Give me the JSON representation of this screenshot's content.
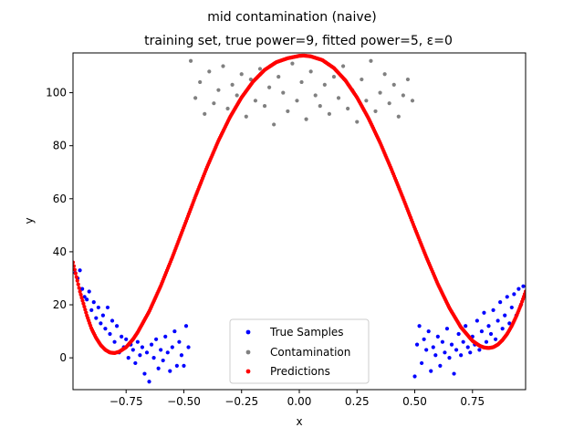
{
  "chart_data": {
    "type": "scatter",
    "title": "mid contamination (naive)",
    "subtitle": "training set, true power=9, fitted power=5, ε=0",
    "xlabel": "x",
    "ylabel": "y",
    "xlim": [
      -0.98,
      0.98
    ],
    "ylim": [
      -12,
      115
    ],
    "xticks": [
      -0.75,
      -0.5,
      -0.25,
      0.0,
      0.25,
      0.5,
      0.75
    ],
    "xtick_labels": [
      "−0.75",
      "−0.50",
      "−0.25",
      "0.00",
      "0.25",
      "0.50",
      "0.75"
    ],
    "yticks": [
      0,
      20,
      40,
      60,
      80,
      100
    ],
    "ytick_labels": [
      "0",
      "20",
      "40",
      "60",
      "80",
      "100"
    ],
    "grid": false,
    "legend_position": "lower-center",
    "series": [
      {
        "name": "True Samples",
        "color": "#0000ff",
        "x_range": [
          [
            -0.98,
            -0.48
          ],
          [
            0.5,
            0.98
          ]
        ],
        "points": [
          [
            -0.97,
            32
          ],
          [
            -0.96,
            30
          ],
          [
            -0.95,
            33
          ],
          [
            -0.94,
            26
          ],
          [
            -0.93,
            23
          ],
          [
            -0.92,
            22
          ],
          [
            -0.91,
            25
          ],
          [
            -0.9,
            18
          ],
          [
            -0.89,
            21
          ],
          [
            -0.88,
            15
          ],
          [
            -0.87,
            19
          ],
          [
            -0.86,
            13
          ],
          [
            -0.85,
            16
          ],
          [
            -0.84,
            11
          ],
          [
            -0.83,
            19
          ],
          [
            -0.82,
            9
          ],
          [
            -0.81,
            14
          ],
          [
            -0.8,
            6
          ],
          [
            -0.79,
            12
          ],
          [
            -0.78,
            2
          ],
          [
            -0.77,
            8
          ],
          [
            -0.76,
            4
          ],
          [
            -0.75,
            7
          ],
          [
            -0.74,
            0
          ],
          [
            -0.73,
            5
          ],
          [
            -0.72,
            3
          ],
          [
            -0.71,
            -2
          ],
          [
            -0.7,
            6
          ],
          [
            -0.69,
            1
          ],
          [
            -0.68,
            4
          ],
          [
            -0.67,
            -6
          ],
          [
            -0.66,
            2
          ],
          [
            -0.65,
            -9
          ],
          [
            -0.64,
            5
          ],
          [
            -0.63,
            0
          ],
          [
            -0.62,
            7
          ],
          [
            -0.61,
            -4
          ],
          [
            -0.6,
            3
          ],
          [
            -0.59,
            -1
          ],
          [
            -0.58,
            8
          ],
          [
            -0.57,
            2
          ],
          [
            -0.56,
            -5
          ],
          [
            -0.55,
            4
          ],
          [
            -0.54,
            10
          ],
          [
            -0.53,
            -3
          ],
          [
            -0.52,
            6
          ],
          [
            -0.51,
            1
          ],
          [
            -0.5,
            -3
          ],
          [
            -0.49,
            12
          ],
          [
            -0.48,
            4
          ],
          [
            0.5,
            -7
          ],
          [
            0.51,
            5
          ],
          [
            0.52,
            12
          ],
          [
            0.53,
            -2
          ],
          [
            0.54,
            7
          ],
          [
            0.55,
            3
          ],
          [
            0.56,
            10
          ],
          [
            0.57,
            -5
          ],
          [
            0.58,
            4
          ],
          [
            0.59,
            1
          ],
          [
            0.6,
            8
          ],
          [
            0.61,
            -3
          ],
          [
            0.62,
            6
          ],
          [
            0.63,
            2
          ],
          [
            0.64,
            11
          ],
          [
            0.65,
            0
          ],
          [
            0.66,
            5
          ],
          [
            0.67,
            -6
          ],
          [
            0.68,
            3
          ],
          [
            0.69,
            9
          ],
          [
            0.7,
            1
          ],
          [
            0.71,
            6
          ],
          [
            0.72,
            12
          ],
          [
            0.73,
            4
          ],
          [
            0.74,
            2
          ],
          [
            0.75,
            8
          ],
          [
            0.76,
            5
          ],
          [
            0.77,
            14
          ],
          [
            0.78,
            3
          ],
          [
            0.79,
            10
          ],
          [
            0.8,
            17
          ],
          [
            0.81,
            6
          ],
          [
            0.82,
            12
          ],
          [
            0.83,
            9
          ],
          [
            0.84,
            18
          ],
          [
            0.85,
            7
          ],
          [
            0.86,
            14
          ],
          [
            0.87,
            21
          ],
          [
            0.88,
            11
          ],
          [
            0.89,
            16
          ],
          [
            0.9,
            23
          ],
          [
            0.91,
            13
          ],
          [
            0.92,
            19
          ],
          [
            0.93,
            24
          ],
          [
            0.94,
            16
          ],
          [
            0.95,
            26
          ],
          [
            0.96,
            20
          ],
          [
            0.97,
            27
          ]
        ]
      },
      {
        "name": "Contamination",
        "color": "#808080",
        "x_range": [
          -0.48,
          0.5
        ],
        "y_range": [
          86,
          114
        ],
        "points": [
          [
            -0.47,
            112
          ],
          [
            -0.45,
            98
          ],
          [
            -0.43,
            104
          ],
          [
            -0.41,
            92
          ],
          [
            -0.39,
            108
          ],
          [
            -0.37,
            96
          ],
          [
            -0.35,
            101
          ],
          [
            -0.33,
            110
          ],
          [
            -0.31,
            94
          ],
          [
            -0.29,
            103
          ],
          [
            -0.27,
            99
          ],
          [
            -0.25,
            107
          ],
          [
            -0.23,
            91
          ],
          [
            -0.21,
            105
          ],
          [
            -0.19,
            97
          ],
          [
            -0.17,
            109
          ],
          [
            -0.15,
            95
          ],
          [
            -0.13,
            102
          ],
          [
            -0.11,
            88
          ],
          [
            -0.09,
            106
          ],
          [
            -0.07,
            100
          ],
          [
            -0.05,
            93
          ],
          [
            -0.03,
            111
          ],
          [
            -0.01,
            97
          ],
          [
            0.01,
            104
          ],
          [
            0.03,
            90
          ],
          [
            0.05,
            108
          ],
          [
            0.07,
            99
          ],
          [
            0.09,
            95
          ],
          [
            0.11,
            103
          ],
          [
            0.13,
            92
          ],
          [
            0.15,
            106
          ],
          [
            0.17,
            98
          ],
          [
            0.19,
            110
          ],
          [
            0.21,
            94
          ],
          [
            0.23,
            101
          ],
          [
            0.25,
            89
          ],
          [
            0.27,
            105
          ],
          [
            0.29,
            97
          ],
          [
            0.31,
            112
          ],
          [
            0.33,
            93
          ],
          [
            0.35,
            100
          ],
          [
            0.37,
            107
          ],
          [
            0.39,
            96
          ],
          [
            0.41,
            103
          ],
          [
            0.43,
            91
          ],
          [
            0.45,
            99
          ],
          [
            0.47,
            105
          ],
          [
            0.49,
            97
          ]
        ]
      },
      {
        "name": "Predictions",
        "color": "#ff0000",
        "curve": [
          [
            -0.98,
            36
          ],
          [
            -0.95,
            25
          ],
          [
            -0.92,
            16
          ],
          [
            -0.9,
            11
          ],
          [
            -0.88,
            7.5
          ],
          [
            -0.86,
            4.8
          ],
          [
            -0.84,
            3.0
          ],
          [
            -0.82,
            2.0
          ],
          [
            -0.8,
            1.8
          ],
          [
            -0.78,
            2.3
          ],
          [
            -0.75,
            4.0
          ],
          [
            -0.72,
            7.0
          ],
          [
            -0.7,
            9.6
          ],
          [
            -0.65,
            17.5
          ],
          [
            -0.6,
            27.1
          ],
          [
            -0.55,
            37.9
          ],
          [
            -0.5,
            49.3
          ],
          [
            -0.45,
            60.8
          ],
          [
            -0.4,
            71.8
          ],
          [
            -0.35,
            81.9
          ],
          [
            -0.3,
            90.8
          ],
          [
            -0.25,
            98.2
          ],
          [
            -0.2,
            104.2
          ],
          [
            -0.15,
            108.6
          ],
          [
            -0.1,
            111.5
          ],
          [
            -0.05,
            113.0
          ],
          [
            0.0,
            113.9
          ],
          [
            0.02,
            114.0
          ],
          [
            0.05,
            113.7
          ],
          [
            0.1,
            112.3
          ],
          [
            0.15,
            109.3
          ],
          [
            0.2,
            104.6
          ],
          [
            0.25,
            98.2
          ],
          [
            0.3,
            90.3
          ],
          [
            0.35,
            81.1
          ],
          [
            0.4,
            70.9
          ],
          [
            0.45,
            60.1
          ],
          [
            0.5,
            48.9
          ],
          [
            0.55,
            38.0
          ],
          [
            0.6,
            27.8
          ],
          [
            0.65,
            18.8
          ],
          [
            0.7,
            11.5
          ],
          [
            0.75,
            6.4
          ],
          [
            0.78,
            4.6
          ],
          [
            0.8,
            3.9
          ],
          [
            0.82,
            3.7
          ],
          [
            0.84,
            4.0
          ],
          [
            0.86,
            5.0
          ],
          [
            0.88,
            6.7
          ],
          [
            0.9,
            9.0
          ],
          [
            0.92,
            12.0
          ],
          [
            0.94,
            15.7
          ],
          [
            0.96,
            20.0
          ],
          [
            0.98,
            25.0
          ]
        ]
      }
    ]
  }
}
